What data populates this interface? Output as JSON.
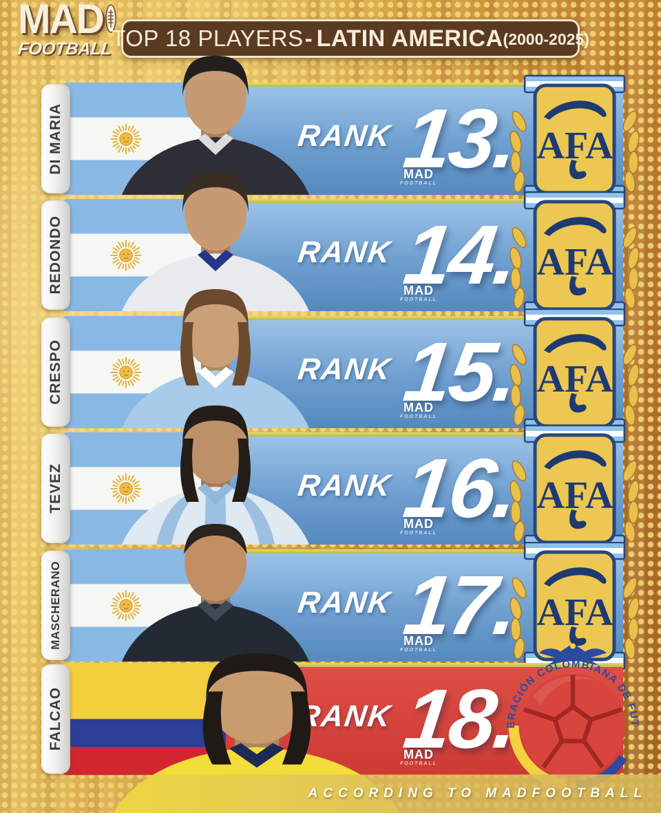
{
  "header": {
    "logo": {
      "mad": "MAD",
      "football": "FOOTBALL"
    },
    "title": {
      "main": "TOP 18 PLAYERS",
      "dash": "-",
      "region": "LATIN AMERICA",
      "years": "(2000-2025)"
    }
  },
  "watermark": {
    "mad": "MAD",
    "football": "FOOTBALL"
  },
  "footer": {
    "credit": "ACCORDING TO MADFOOTBALL"
  },
  "colors": {
    "background_gold": "#d3a044",
    "panel_blue": "#6f9fd0",
    "panel_red": "#cd3b34",
    "title_brown": "#5a3b22",
    "title_cream": "#f6edda",
    "flag_lightblue": "#8ab8e4",
    "colombia_yellow": "#f3cf3e",
    "colombia_blue": "#2c3f94",
    "colombia_red": "#d2262e",
    "afa_gold": "#ecc751",
    "afa_navy": "#1e3a70",
    "divider_green": "#b7bd4b"
  },
  "rows": [
    {
      "name": "DI MARIA",
      "rank_label": "RANK",
      "rank_number": "13.",
      "country": "argentina",
      "badge": {
        "type": "afa",
        "text": "AFA"
      },
      "photo": {
        "skin": "#c69a72",
        "hair": "#241f1c",
        "jersey": "#2e2e36",
        "trim": "#dcdcdc",
        "style": "short"
      }
    },
    {
      "name": "REDONDO",
      "rank_label": "RANK",
      "rank_number": "14.",
      "country": "argentina",
      "badge": {
        "type": "afa",
        "text": "AFA"
      },
      "photo": {
        "skin": "#c89a74",
        "hair": "#3a2e24",
        "jersey": "#e9eaee",
        "trim": "#27348a",
        "style": "short"
      }
    },
    {
      "name": "CRESPO",
      "rank_label": "RANK",
      "rank_number": "15.",
      "country": "argentina",
      "badge": {
        "type": "afa",
        "text": "AFA"
      },
      "photo": {
        "skin": "#caa078",
        "hair": "#6b4a2e",
        "jersey": "#a7cbe8",
        "trim": "#ffffff",
        "style": "long"
      }
    },
    {
      "name": "TEVEZ",
      "rank_label": "RANK",
      "rank_number": "16.",
      "country": "argentina",
      "badge": {
        "type": "afa",
        "text": "AFA"
      },
      "photo": {
        "skin": "#bd9068",
        "hair": "#241d18",
        "jersey": "#dfe9f2",
        "trim": "#8fb8dc",
        "style": "long",
        "stripes": "#9cc0e0"
      }
    },
    {
      "name": "MASCHERANO",
      "rank_label": "RANK",
      "rank_number": "17.",
      "country": "argentina",
      "badge": {
        "type": "afa",
        "text": "AFA"
      },
      "photo": {
        "skin": "#c09064",
        "hair": "#2a241e",
        "jersey": "#232a33",
        "trim": "#3d4a58",
        "style": "buzz"
      }
    },
    {
      "name": "FALCAO",
      "rank_label": "RANK",
      "rank_number": "18.",
      "country": "colombia",
      "badge": {
        "type": "fcf",
        "arc_text": "FEDERACIÓN COLOMBIANA DE FUTBOL"
      },
      "photo": {
        "skin": "#c99c6e",
        "hair": "#1f1a16",
        "jersey": "#f2dd3a",
        "trim": "#1e2a56",
        "style": "long"
      }
    }
  ]
}
